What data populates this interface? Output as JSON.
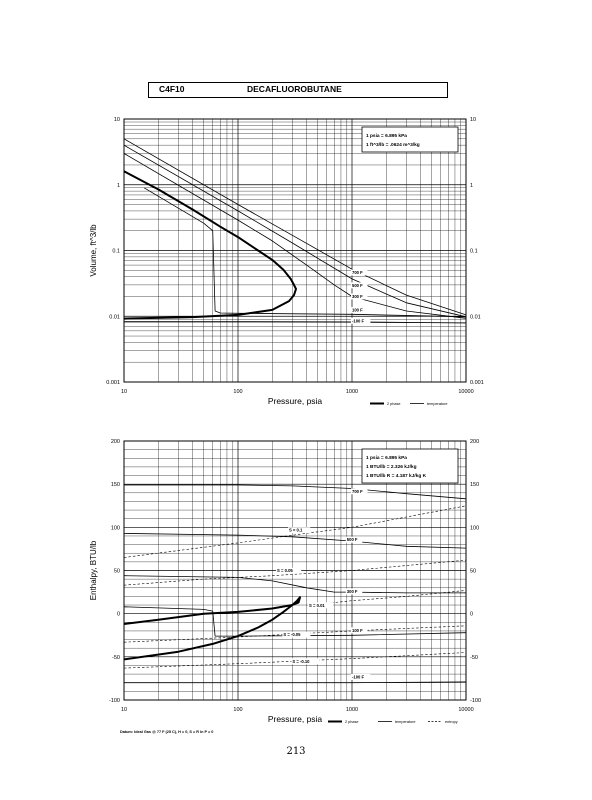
{
  "header": {
    "formula": "C4F10",
    "name": "DECAFLUOROBUTANE"
  },
  "page_number": "213",
  "chart_data": [
    {
      "type": "line",
      "xscale": "log",
      "yscale": "log",
      "xlim": [
        10,
        10000
      ],
      "ylim": [
        0.001,
        10
      ],
      "xlabel": "Pressure,  psia",
      "ylabel": "Volume, ft^3/lb",
      "xticks": [
        "10",
        "100",
        "1000",
        "10000"
      ],
      "yticks": [
        "0.001",
        "0.01",
        "0.1",
        "1",
        "10"
      ],
      "notes": [
        "1 psia = 6.895 kPa",
        "1 ft^3/lb = .0624 m^3/kg"
      ],
      "legend": [
        {
          "label": "2 phase",
          "style": "thick"
        },
        {
          "label": "temperature",
          "style": "thin"
        }
      ],
      "grid": true,
      "series": [
        {
          "name": "2 phase",
          "kind": "dome",
          "x": [
            10,
            20,
            40,
            70,
            100,
            150,
            200,
            250,
            290,
            310,
            323,
            310,
            280,
            200,
            100,
            40,
            10
          ],
          "y": [
            1.6,
            0.85,
            0.42,
            0.23,
            0.16,
            0.1,
            0.072,
            0.051,
            0.037,
            0.03,
            0.026,
            0.021,
            0.017,
            0.0125,
            0.0105,
            0.0097,
            0.0092
          ]
        },
        {
          "name": "700 F",
          "kind": "temperature",
          "x": [
            10,
            100,
            300,
            1000,
            3000,
            10000
          ],
          "y": [
            5.0,
            0.5,
            0.17,
            0.052,
            0.021,
            0.0105
          ]
        },
        {
          "name": "500 F",
          "kind": "temperature",
          "x": [
            10,
            100,
            300,
            1000,
            3000,
            10000
          ],
          "y": [
            4.0,
            0.4,
            0.13,
            0.037,
            0.016,
            0.0098
          ]
        },
        {
          "name": "300 F",
          "kind": "temperature",
          "x": [
            10,
            100,
            200,
            400,
            700,
            1000,
            3000,
            10000
          ],
          "y": [
            3.0,
            0.29,
            0.14,
            0.06,
            0.03,
            0.02,
            0.012,
            0.0093
          ]
        },
        {
          "name": "100 F",
          "kind": "temperature",
          "x": [
            15,
            30,
            50,
            60,
            63,
            70,
            100,
            1000,
            10000
          ],
          "y": [
            0.9,
            0.44,
            0.26,
            0.2,
            0.012,
            0.0112,
            0.0111,
            0.0107,
            0.0098
          ]
        },
        {
          "name": "-100 F",
          "kind": "temperature",
          "x": [
            10,
            100,
            1000,
            10000
          ],
          "y": [
            0.0083,
            0.0083,
            0.0082,
            0.0079
          ]
        }
      ],
      "curve_labels": [
        {
          "text": "700 F",
          "x": 1000,
          "y": 0.044
        },
        {
          "text": "500 F",
          "x": 1000,
          "y": 0.028
        },
        {
          "text": "300 F",
          "x": 1000,
          "y": 0.019
        },
        {
          "text": "100 F",
          "x": 1000,
          "y": 0.0118
        },
        {
          "text": "-100 F",
          "x": 1000,
          "y": 0.0081
        }
      ]
    },
    {
      "type": "line",
      "xscale": "log",
      "yscale": "linear",
      "xlim": [
        10,
        10000
      ],
      "ylim": [
        -100,
        200
      ],
      "xlabel": "Pressure,  psia",
      "ylabel": "Enthalpy, BTU/lb",
      "xticks": [
        "10",
        "100",
        "1000",
        "10000"
      ],
      "yticks": [
        "-100",
        "-50",
        "0",
        "50",
        "100",
        "150",
        "200"
      ],
      "notes": [
        "1 psia = 6.895 kPa",
        "1 BTU/lb = 2.326 kJ/kg",
        "1 BTU/lb R = 4.187 kJ/kg K"
      ],
      "legend": [
        {
          "label": "2 phase",
          "style": "thick"
        },
        {
          "label": "temperature",
          "style": "thin"
        },
        {
          "label": "entropy",
          "style": "dashed"
        }
      ],
      "footnote": "Datum: Ideal Gas @ 77 F (25 C), H = 0, S = R ln P = 0",
      "grid": true,
      "series": [
        {
          "name": "2 phase",
          "kind": "dome",
          "x": [
            10,
            30,
            60,
            100,
            150,
            200,
            250,
            300,
            330,
            350,
            340,
            300,
            200,
            100,
            50,
            20,
            10
          ],
          "y": [
            -53,
            -44,
            -35,
            -26,
            -16,
            -7,
            2,
            10,
            15,
            19,
            13,
            10,
            6,
            2,
            0,
            -7,
            -12
          ]
        },
        {
          "name": "700 F",
          "kind": "temperature",
          "x": [
            10,
            100,
            300,
            1000,
            3000,
            10000
          ],
          "y": [
            149,
            149,
            148,
            145,
            139,
            133
          ]
        },
        {
          "name": "500 F",
          "kind": "temperature",
          "x": [
            10,
            100,
            300,
            1000,
            3000,
            10000
          ],
          "y": [
            93,
            91,
            89,
            84,
            78,
            76
          ]
        },
        {
          "name": "300 F",
          "kind": "temperature",
          "x": [
            10,
            100,
            200,
            400,
            700,
            1000,
            3000,
            10000
          ],
          "y": [
            44,
            42,
            38,
            30,
            25,
            25,
            24,
            24
          ]
        },
        {
          "name": "100 F",
          "kind": "temperature",
          "x": [
            10,
            50,
            60,
            63,
            100,
            1000,
            10000
          ],
          "y": [
            8,
            5,
            3,
            -26,
            -26,
            -25,
            -22
          ]
        },
        {
          "name": "-100 F",
          "kind": "temperature",
          "x": [
            10,
            100,
            1000,
            10000
          ],
          "y": [
            -80,
            -80,
            -80,
            -79
          ]
        },
        {
          "name": "S = 0.1",
          "kind": "entropy",
          "x": [
            10,
            100,
            350,
            1000,
            3000,
            10000
          ],
          "y": [
            65,
            82,
            92,
            100,
            112,
            125
          ]
        },
        {
          "name": "S = 0.05",
          "kind": "entropy",
          "x": [
            10,
            50,
            200,
            1000,
            10000
          ],
          "y": [
            33,
            40,
            44,
            50,
            62
          ]
        },
        {
          "name": "S = 0.01",
          "kind": "entropy",
          "x": [
            600,
            1000,
            3000,
            10000
          ],
          "y": [
            12,
            15,
            20,
            27
          ]
        },
        {
          "name": "S = -0.05",
          "kind": "entropy",
          "x": [
            10,
            100,
            1000,
            10000
          ],
          "y": [
            -33,
            -27,
            -20,
            -14
          ]
        },
        {
          "name": "S = -0.10",
          "kind": "entropy",
          "x": [
            10,
            100,
            1000,
            10000
          ],
          "y": [
            -63,
            -58,
            -52,
            -45
          ]
        }
      ],
      "curve_labels": [
        {
          "text": "700 F",
          "x": 1000,
          "y": 140
        },
        {
          "text": "500 F",
          "x": 900,
          "y": 84
        },
        {
          "text": "300 F",
          "x": 900,
          "y": 24
        },
        {
          "text": "100 F",
          "x": 1000,
          "y": -21
        },
        {
          "text": "-100 F",
          "x": 1000,
          "y": -75
        },
        {
          "text": "S = 0.1",
          "x": 280,
          "y": 95
        },
        {
          "text": "S = 0.05",
          "x": 220,
          "y": 48
        },
        {
          "text": "S = 0.01",
          "x": 420,
          "y": 8
        },
        {
          "text": "S = -0.05",
          "x": 250,
          "y": -26
        },
        {
          "text": "S = -0.10",
          "x": 300,
          "y": -57
        }
      ]
    }
  ]
}
